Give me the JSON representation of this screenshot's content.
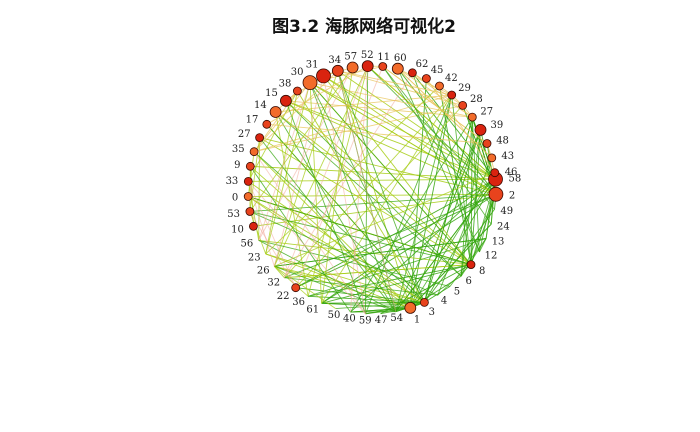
{
  "title": "图3.2 海豚网络可视化2",
  "chart_data": {
    "type": "network",
    "layout": "circle",
    "title": "图3.2 海豚网络可视化2",
    "node_fill_colors": [
      "#d9230f",
      "#e8431d",
      "#f26b2a"
    ],
    "edge_colors": {
      "far_side": "#33a50c",
      "middle": "#a6cc14",
      "near_side": "#e8c45a",
      "faint": "#f0a898"
    },
    "nodes": [
      {
        "id": "58",
        "label": "58",
        "marker": "large"
      },
      {
        "id": "2",
        "label": "2",
        "marker": "large"
      },
      {
        "id": "49",
        "label": "49"
      },
      {
        "id": "24",
        "label": "24"
      },
      {
        "id": "13",
        "label": "13"
      },
      {
        "id": "12",
        "label": "12"
      },
      {
        "id": "8",
        "label": "8",
        "marker": "small"
      },
      {
        "id": "6",
        "label": "6"
      },
      {
        "id": "5",
        "label": "5"
      },
      {
        "id": "4",
        "label": "4"
      },
      {
        "id": "3",
        "label": "3",
        "marker": "small"
      },
      {
        "id": "1",
        "label": "1",
        "marker": "medium"
      },
      {
        "id": "54",
        "label": "54"
      },
      {
        "id": "47",
        "label": "47"
      },
      {
        "id": "59",
        "label": "59"
      },
      {
        "id": "40",
        "label": "40"
      },
      {
        "id": "50",
        "label": "50"
      },
      {
        "id": "61",
        "label": "61"
      },
      {
        "id": "36",
        "label": "36"
      },
      {
        "id": "22",
        "label": "22",
        "marker": "small"
      },
      {
        "id": "32",
        "label": "32"
      },
      {
        "id": "26",
        "label": "26"
      },
      {
        "id": "23",
        "label": "23"
      },
      {
        "id": "56",
        "label": "56"
      },
      {
        "id": "10",
        "label": "10",
        "marker": "small"
      },
      {
        "id": "53",
        "label": "53",
        "marker": "small"
      },
      {
        "id": "0",
        "label": "0",
        "marker": "small"
      },
      {
        "id": "33",
        "label": "33",
        "marker": "small"
      },
      {
        "id": "9",
        "label": "9",
        "marker": "small"
      },
      {
        "id": "35",
        "label": "35",
        "marker": "small"
      },
      {
        "id": "27",
        "label": "27",
        "marker": "small"
      },
      {
        "id": "17",
        "label": "17",
        "marker": "small"
      },
      {
        "id": "14",
        "label": "14",
        "marker": "medium"
      },
      {
        "id": "15",
        "label": "15",
        "marker": "medium"
      },
      {
        "id": "38",
        "label": "38",
        "marker": "small"
      },
      {
        "id": "30",
        "label": "30",
        "marker": "large"
      },
      {
        "id": "31",
        "label": "31",
        "marker": "large"
      },
      {
        "id": "34",
        "label": "34",
        "marker": "medium"
      },
      {
        "id": "57",
        "label": "57",
        "marker": "medium"
      },
      {
        "id": "52",
        "label": "52",
        "marker": "medium"
      },
      {
        "id": "11",
        "label": "11",
        "marker": "small"
      },
      {
        "id": "60",
        "label": "60",
        "marker": "medium"
      },
      {
        "id": "62",
        "label": "62",
        "marker": "small"
      },
      {
        "id": "45",
        "label": "45",
        "marker": "small"
      },
      {
        "id": "42",
        "label": "42",
        "marker": "small"
      },
      {
        "id": "29",
        "label": "29",
        "marker": "small"
      },
      {
        "id": "28",
        "label": "28",
        "marker": "small"
      },
      {
        "id": "27b",
        "label": "27",
        "marker": "small"
      },
      {
        "id": "39",
        "label": "39",
        "marker": "medium"
      },
      {
        "id": "48",
        "label": "48",
        "marker": "small"
      },
      {
        "id": "43",
        "label": "43",
        "marker": "small"
      },
      {
        "id": "46",
        "label": "46",
        "marker": "small"
      }
    ],
    "hub_nodes": [
      "58",
      "2",
      "1",
      "3",
      "8"
    ]
  }
}
